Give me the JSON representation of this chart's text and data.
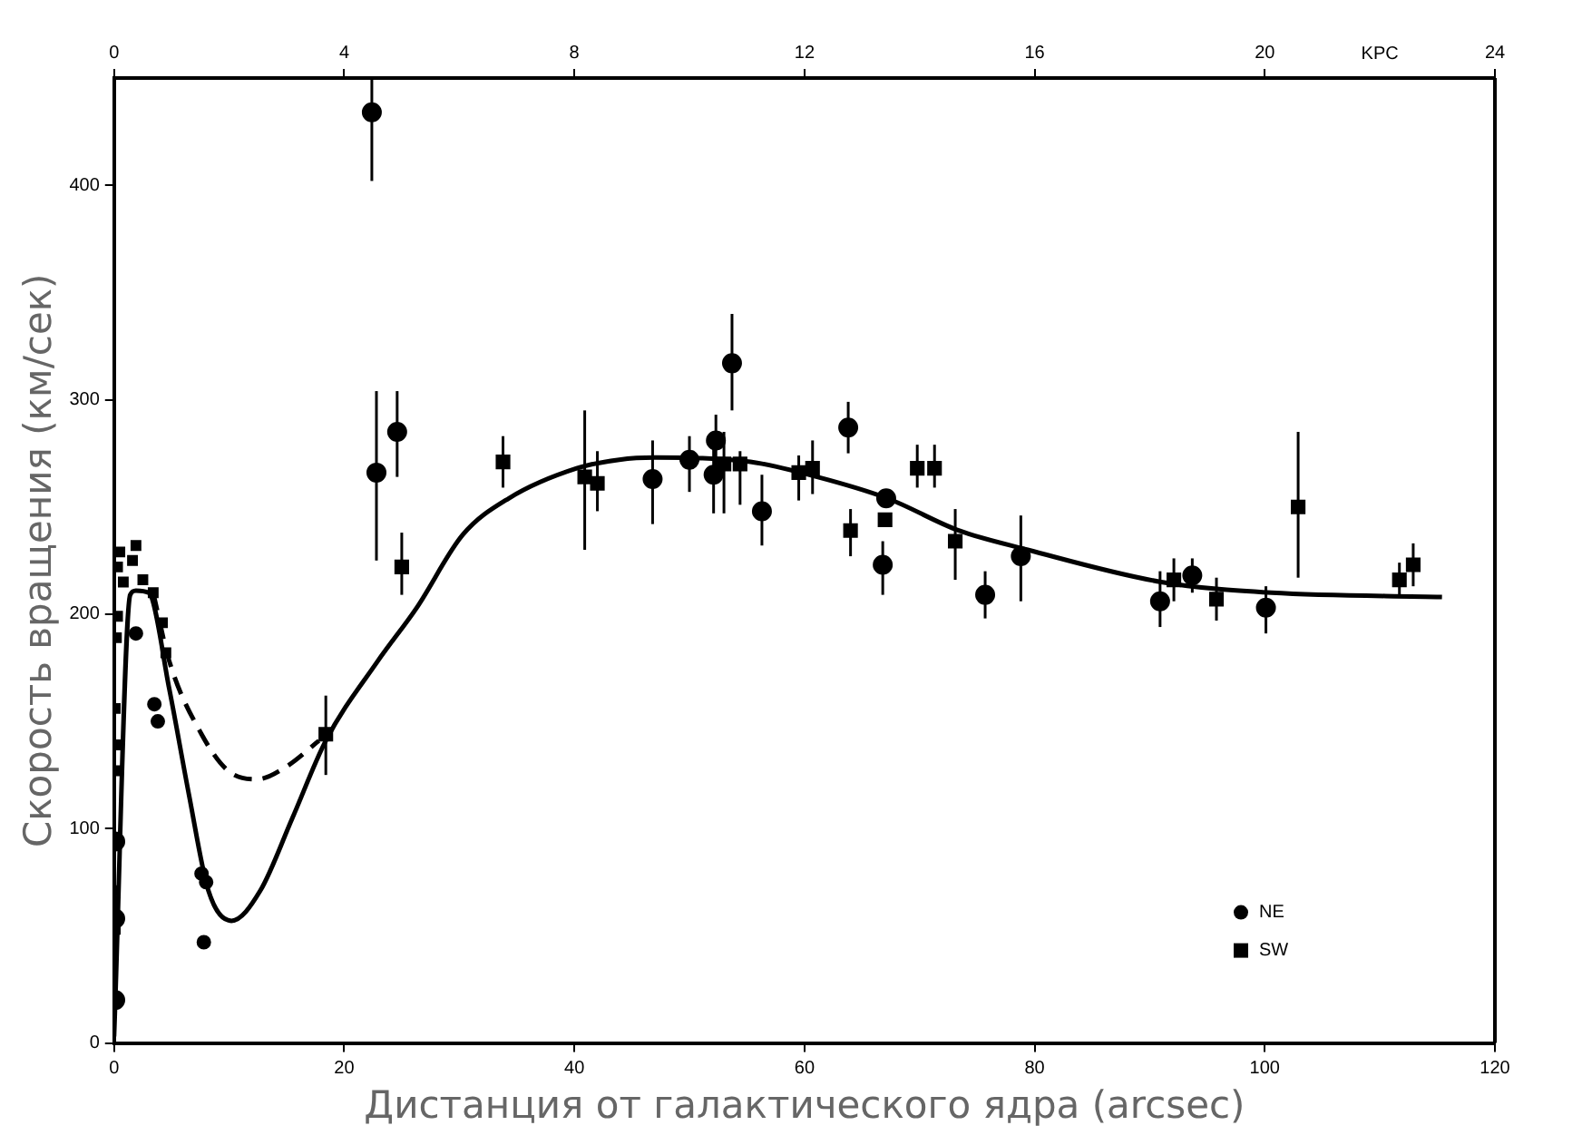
{
  "chart_data": {
    "type": "scatter",
    "xlabel": "Дистанция от галактического ядра (arcsec)",
    "ylabel": "Скорость вращения (км/сек)",
    "x2label": "KPC",
    "xlim": [
      0,
      120
    ],
    "xticks": [
      0,
      20,
      40,
      60,
      80,
      100,
      120
    ],
    "ylim": [
      0,
      450
    ],
    "yticks": [
      0,
      100,
      200,
      300,
      400
    ],
    "x2lim": [
      0,
      24
    ],
    "x2ticks": [
      0,
      4,
      8,
      12,
      16,
      20,
      24
    ],
    "grid": false,
    "legend": "bottom right",
    "series": [
      {
        "type": "line",
        "color": "#000000",
        "marker": "none",
        "line_style": "solid",
        "x": [
          0,
          1.4,
          1.9,
          3.0,
          4.8,
          6.5,
          8.2,
          10.2,
          12.7,
          15.5,
          18.4,
          22.9,
          26.3,
          30.3,
          34.3,
          40.2,
          43.9,
          47,
          55.3,
          61.1,
          67.2,
          73.4,
          79.4,
          91.0,
          100.6,
          115.4
        ],
        "values": [
          3,
          209,
          211,
          210,
          165,
          116,
          71,
          57,
          71,
          105,
          141,
          178,
          203,
          237,
          254,
          268,
          272,
          273,
          271,
          264,
          254,
          239,
          230,
          215,
          210,
          208
        ]
      },
      {
        "type": "line",
        "color": "#000000",
        "marker": "none",
        "line_style": "dashed",
        "x": [
          3.4,
          4.8,
          7.6,
          9.9,
          12.4,
          15.0,
          17.8
        ],
        "values": [
          210,
          178,
          144,
          127,
          123,
          129,
          141
        ]
      },
      {
        "name": "NE",
        "color": "#000000",
        "marker": "circle",
        "x": [
          0.1,
          0.1,
          0.1,
          22.4,
          22.8,
          24.6,
          46.8,
          50.0,
          52.1,
          52.3,
          53.7,
          56.3,
          63.8,
          67.1,
          66.8,
          75.7,
          78.8,
          90.9,
          93.7,
          100.1
        ],
        "values": [
          94,
          58,
          20,
          434,
          266,
          285,
          263,
          272,
          265,
          281,
          317,
          248,
          287,
          254,
          223,
          209,
          227,
          206,
          218,
          203
        ],
        "errors": [
          null,
          null,
          null,
          [
            402,
            450
          ],
          [
            225,
            304
          ],
          [
            264,
            304
          ],
          [
            242,
            281
          ],
          [
            257,
            283
          ],
          [
            247,
            278
          ],
          [
            269,
            293
          ],
          [
            295,
            340
          ],
          [
            232,
            265
          ],
          [
            275,
            299
          ],
          null,
          [
            209,
            234
          ],
          [
            198,
            220
          ],
          [
            206,
            246
          ],
          [
            194,
            220
          ],
          [
            210,
            226
          ],
          [
            191,
            213
          ]
        ]
      },
      {
        "name": "SW",
        "color": "#000000",
        "marker": "square",
        "x": [
          18.4,
          25.0,
          33.8,
          40.9,
          42.0,
          53.0,
          54.4,
          59.5,
          60.7,
          64.0,
          67.0,
          69.8,
          71.3,
          73.1,
          92.1,
          95.8,
          102.9,
          111.7,
          112.9
        ],
        "values": [
          144,
          222,
          271,
          264,
          261,
          270,
          270,
          266,
          268,
          239,
          244,
          268,
          268,
          234,
          216,
          207,
          250,
          216,
          223
        ],
        "errors": [
          [
            125,
            162
          ],
          [
            209,
            238
          ],
          [
            259,
            283
          ],
          [
            230,
            295
          ],
          [
            248,
            276
          ],
          [
            247,
            285
          ],
          [
            251,
            276
          ],
          [
            253,
            274
          ],
          [
            256,
            281
          ],
          [
            227,
            249
          ],
          null,
          [
            259,
            279
          ],
          [
            259,
            279
          ],
          [
            216,
            249
          ],
          [
            206,
            226
          ],
          [
            197,
            217
          ],
          [
            217,
            285
          ],
          [
            208,
            224
          ],
          [
            213,
            233
          ]
        ]
      },
      {
        "color": "#000000",
        "marker": "circle",
        "x": [
          1.9,
          7.6,
          8.0,
          7.8,
          3.5,
          3.8
        ],
        "values": [
          191,
          79,
          75,
          47,
          158,
          150
        ]
      },
      {
        "color": "#000000",
        "marker": "square",
        "x": [
          0.5,
          1.9,
          0.3,
          1.6,
          0.8,
          2.5,
          3.4,
          4.2,
          4.5,
          0.3,
          0.2,
          0.1,
          0.1,
          0.1,
          0.1,
          0.1
        ],
        "values": [
          229,
          232,
          222,
          225,
          215,
          216,
          210,
          196,
          182,
          199,
          189,
          156,
          139,
          127,
          71,
          53
        ]
      }
    ]
  }
}
